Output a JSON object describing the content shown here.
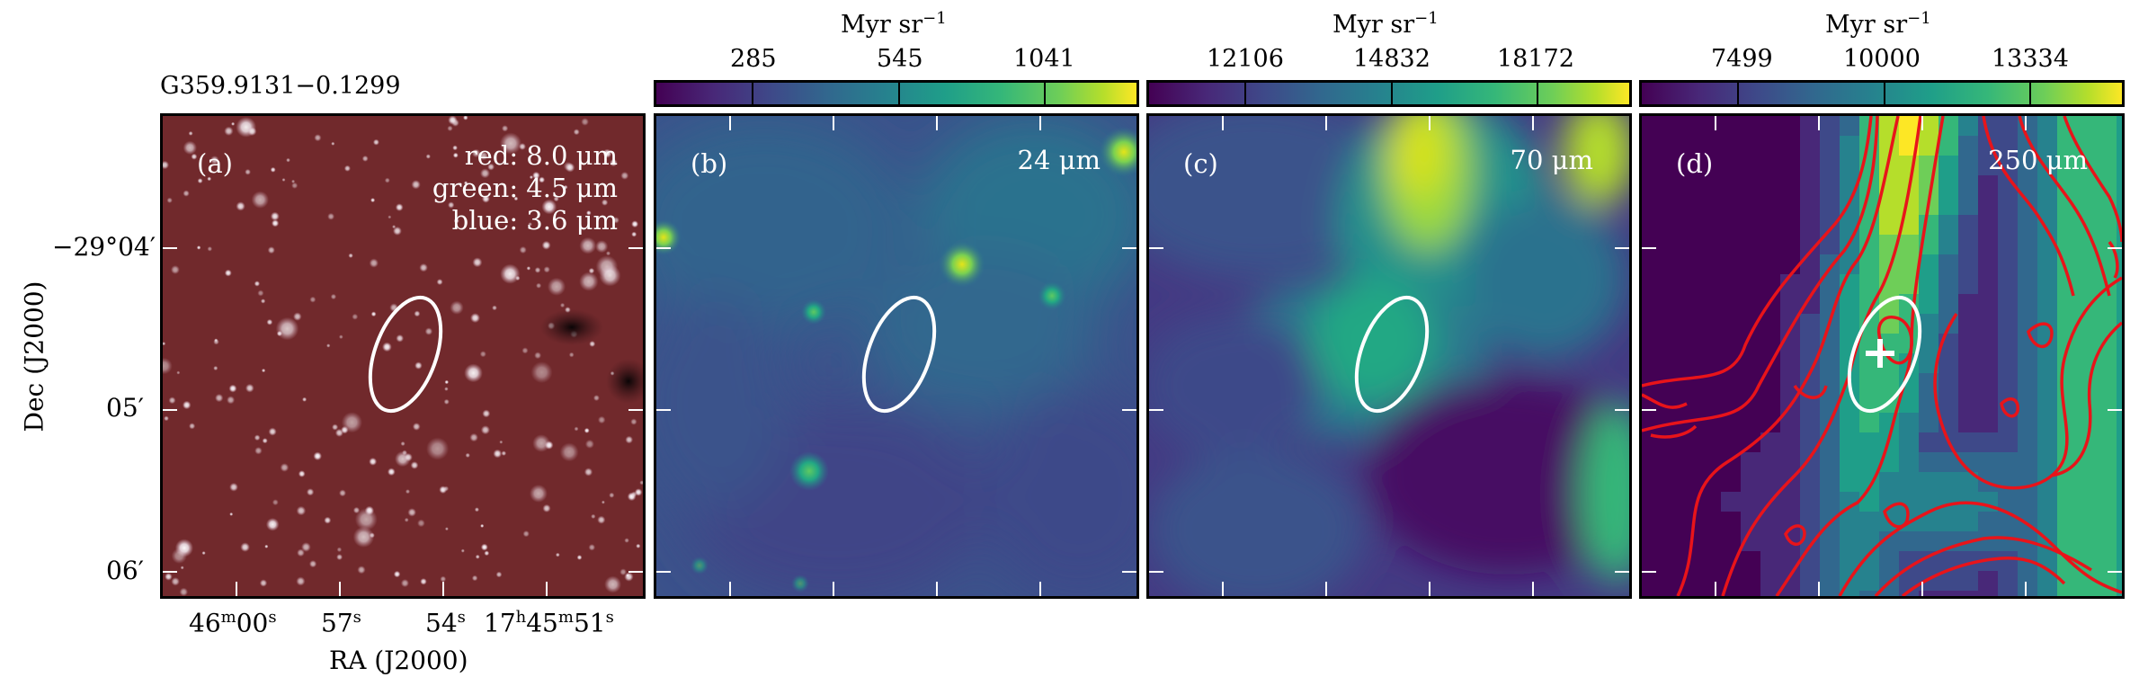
{
  "figure": {
    "source_name": "G359.9131−0.1299",
    "x_axis_label": "RA (J2000)",
    "y_axis_label": "Dec (J2000)",
    "ra_ticks": [
      {
        "main": "46",
        "main_sup": "m",
        "sec": "00",
        "sec_sup": "s"
      },
      {
        "sec": "57",
        "sec_sup": "s"
      },
      {
        "sec": "54",
        "sec_sup": "s"
      },
      {
        "h": "17",
        "h_sup": "h",
        "main": "45",
        "main_sup": "m",
        "sec": "51",
        "sec_sup": "s"
      }
    ],
    "dec_ticks": [
      "−29°04′",
      "05′",
      "06′"
    ]
  },
  "panels": [
    {
      "id": "a",
      "label": "(a)",
      "legend": [
        "red: 8.0 μm",
        "green: 4.5 μm",
        "blue: 3.6 μm"
      ],
      "kind": "rgb"
    },
    {
      "id": "b",
      "label": "(b)",
      "band": "24 μm",
      "colorbar": {
        "title": "Myr sr",
        "title_sup": "−1",
        "ticks": [
          "285",
          "545",
          "1041"
        ]
      }
    },
    {
      "id": "c",
      "label": "(c)",
      "band": "70 μm",
      "colorbar": {
        "title": "Myr sr",
        "title_sup": "−1",
        "ticks": [
          "12106",
          "14832",
          "18172"
        ]
      }
    },
    {
      "id": "d",
      "label": "(d)",
      "band": "250 μm",
      "colorbar": {
        "title": "Myr sr",
        "title_sup": "−1",
        "ticks": [
          "7499",
          "10000",
          "13334"
        ]
      }
    }
  ],
  "colors": {
    "ellipse": "#ffffff",
    "contours": "#e8141a",
    "colormap": "viridis"
  }
}
